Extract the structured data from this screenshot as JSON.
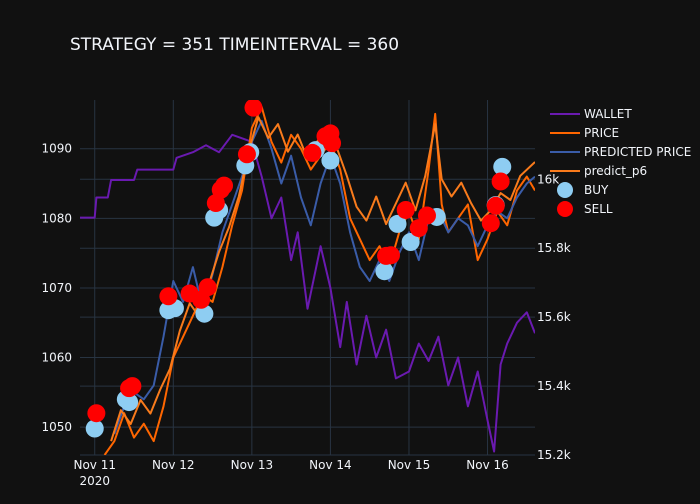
{
  "chart_data": {
    "type": "line",
    "title": "STRATEGY = 351 TIMEINTERVAL = 360",
    "background": "#111111",
    "grid": true,
    "legend_position": "right",
    "x_axis": {
      "type": "date",
      "range": [
        "2020-11-10T19:30",
        "2020-11-16T14:30"
      ],
      "ticks": [
        {
          "value": "2020-11-11T00:00",
          "label": "Nov 11",
          "sublabel": "2020"
        },
        {
          "value": "2020-11-12T00:00",
          "label": "Nov 12",
          "sublabel": ""
        },
        {
          "value": "2020-11-13T00:00",
          "label": "Nov 13",
          "sublabel": ""
        },
        {
          "value": "2020-11-14T00:00",
          "label": "Nov 14",
          "sublabel": ""
        },
        {
          "value": "2020-11-15T00:00",
          "label": "Nov 15",
          "sublabel": ""
        },
        {
          "value": "2020-11-16T00:00",
          "label": "Nov 16",
          "sublabel": ""
        }
      ]
    },
    "y_left": {
      "range": [
        1046,
        1097
      ],
      "ticks": [
        1050,
        1060,
        1070,
        1080,
        1090
      ],
      "tick_labels": [
        "1050",
        "1060",
        "1070",
        "1080",
        "1090"
      ]
    },
    "y_right": {
      "range": [
        15200,
        16230
      ],
      "ticks": [
        15200,
        15400,
        15600,
        15800,
        16000
      ],
      "tick_labels": [
        "15.2k",
        "15.4k",
        "15.6k",
        "15.8k",
        "16k"
      ]
    },
    "series": [
      {
        "name": "WALLET",
        "axis": "left",
        "color": "#6a1ab0",
        "points": [
          [
            "2020-11-10T19:30",
            1080.1
          ],
          [
            "2020-11-11T00:00",
            1080.1
          ],
          [
            "2020-11-11T00:30",
            1083.0
          ],
          [
            "2020-11-11T04:00",
            1083.0
          ],
          [
            "2020-11-11T05:00",
            1085.5
          ],
          [
            "2020-11-11T12:00",
            1085.5
          ],
          [
            "2020-11-11T13:00",
            1087.0
          ],
          [
            "2020-11-12T00:00",
            1087.0
          ],
          [
            "2020-11-12T01:00",
            1088.7
          ],
          [
            "2020-11-12T06:00",
            1089.5
          ],
          [
            "2020-11-12T10:00",
            1090.5
          ],
          [
            "2020-11-12T14:00",
            1089.5
          ],
          [
            "2020-11-12T18:00",
            1092.0
          ],
          [
            "2020-11-13T00:00",
            1091.0
          ],
          [
            "2020-11-13T03:00",
            1086.0
          ],
          [
            "2020-11-13T06:00",
            1080.0
          ],
          [
            "2020-11-13T09:00",
            1083.0
          ],
          [
            "2020-11-13T12:00",
            1074.0
          ],
          [
            "2020-11-13T14:00",
            1078.0
          ],
          [
            "2020-11-13T17:00",
            1067.0
          ],
          [
            "2020-11-13T21:00",
            1076.0
          ],
          [
            "2020-11-14T00:00",
            1070.0
          ],
          [
            "2020-11-14T03:00",
            1061.5
          ],
          [
            "2020-11-14T05:00",
            1068.0
          ],
          [
            "2020-11-14T08:00",
            1059.0
          ],
          [
            "2020-11-14T11:00",
            1066.0
          ],
          [
            "2020-11-14T14:00",
            1060.0
          ],
          [
            "2020-11-14T17:00",
            1064.0
          ],
          [
            "2020-11-14T20:00",
            1057.0
          ],
          [
            "2020-11-15T00:00",
            1058.0
          ],
          [
            "2020-11-15T03:00",
            1062.0
          ],
          [
            "2020-11-15T06:00",
            1059.5
          ],
          [
            "2020-11-15T09:00",
            1063.0
          ],
          [
            "2020-11-15T12:00",
            1056.0
          ],
          [
            "2020-11-15T15:00",
            1060.0
          ],
          [
            "2020-11-15T18:00",
            1053.0
          ],
          [
            "2020-11-15T21:00",
            1058.0
          ],
          [
            "2020-11-16T00:00",
            1051.0
          ],
          [
            "2020-11-16T02:00",
            1046.5
          ],
          [
            "2020-11-16T04:00",
            1059.0
          ],
          [
            "2020-11-16T06:00",
            1062.0
          ],
          [
            "2020-11-16T09:00",
            1065.0
          ],
          [
            "2020-11-16T12:00",
            1066.5
          ],
          [
            "2020-11-16T14:30",
            1063.5
          ]
        ]
      },
      {
        "name": "PRICE",
        "axis": "left",
        "color": "#ff6600",
        "points": [
          [
            "2020-11-11T03:00",
            1046.0
          ],
          [
            "2020-11-11T06:00",
            1048.0
          ],
          [
            "2020-11-11T09:00",
            1052.0
          ],
          [
            "2020-11-11T12:00",
            1048.5
          ],
          [
            "2020-11-11T15:00",
            1050.5
          ],
          [
            "2020-11-11T18:00",
            1048.0
          ],
          [
            "2020-11-11T21:00",
            1053.0
          ],
          [
            "2020-11-12T00:00",
            1060.0
          ],
          [
            "2020-11-12T03:00",
            1063.0
          ],
          [
            "2020-11-12T06:00",
            1066.0
          ],
          [
            "2020-11-12T09:00",
            1069.0
          ],
          [
            "2020-11-12T12:00",
            1068.0
          ],
          [
            "2020-11-12T15:00",
            1073.0
          ],
          [
            "2020-11-12T18:00",
            1079.0
          ],
          [
            "2020-11-12T21:00",
            1084.0
          ],
          [
            "2020-11-13T00:00",
            1093.0
          ],
          [
            "2020-11-13T03:00",
            1096.0
          ],
          [
            "2020-11-13T06:00",
            1091.0
          ],
          [
            "2020-11-13T09:00",
            1088.0
          ],
          [
            "2020-11-13T12:00",
            1092.0
          ],
          [
            "2020-11-13T15:00",
            1090.0
          ],
          [
            "2020-11-13T18:00",
            1087.0
          ],
          [
            "2020-11-13T21:00",
            1089.0
          ],
          [
            "2020-11-14T00:00",
            1091.0
          ],
          [
            "2020-11-14T03:00",
            1087.0
          ],
          [
            "2020-11-14T06:00",
            1080.0
          ],
          [
            "2020-11-14T09:00",
            1077.0
          ],
          [
            "2020-11-14T12:00",
            1074.0
          ],
          [
            "2020-11-14T15:00",
            1076.0
          ],
          [
            "2020-11-14T18:00",
            1073.0
          ],
          [
            "2020-11-14T21:00",
            1078.0
          ],
          [
            "2020-11-15T00:00",
            1081.0
          ],
          [
            "2020-11-15T03:00",
            1077.0
          ],
          [
            "2020-11-15T06:00",
            1087.0
          ],
          [
            "2020-11-15T08:00",
            1095.0
          ],
          [
            "2020-11-15T10:00",
            1082.0
          ],
          [
            "2020-11-15T12:00",
            1078.0
          ],
          [
            "2020-11-15T15:00",
            1080.0
          ],
          [
            "2020-11-15T18:00",
            1082.0
          ],
          [
            "2020-11-15T21:00",
            1074.0
          ],
          [
            "2020-11-16T00:00",
            1077.0
          ],
          [
            "2020-11-16T03:00",
            1081.0
          ],
          [
            "2020-11-16T06:00",
            1079.0
          ],
          [
            "2020-11-16T09:00",
            1084.0
          ],
          [
            "2020-11-16T12:00",
            1086.0
          ],
          [
            "2020-11-16T14:30",
            1084.0
          ]
        ]
      },
      {
        "name": "PREDICTED PRICE",
        "axis": "left",
        "color": "#3a5ca8",
        "points": [
          [
            "2020-11-11T06:00",
            1049.0
          ],
          [
            "2020-11-11T09:00",
            1053.0
          ],
          [
            "2020-11-11T12:00",
            1055.0
          ],
          [
            "2020-11-11T15:00",
            1054.0
          ],
          [
            "2020-11-11T18:00",
            1056.0
          ],
          [
            "2020-11-11T21:00",
            1063.0
          ],
          [
            "2020-11-12T00:00",
            1071.0
          ],
          [
            "2020-11-12T03:00",
            1068.0
          ],
          [
            "2020-11-12T06:00",
            1073.0
          ],
          [
            "2020-11-12T09:00",
            1067.0
          ],
          [
            "2020-11-12T12:00",
            1072.0
          ],
          [
            "2020-11-12T15:00",
            1078.0
          ],
          [
            "2020-11-12T18:00",
            1082.0
          ],
          [
            "2020-11-12T21:00",
            1086.0
          ],
          [
            "2020-11-13T00:00",
            1091.0
          ],
          [
            "2020-11-13T03:00",
            1094.0
          ],
          [
            "2020-11-13T06:00",
            1090.0
          ],
          [
            "2020-11-13T09:00",
            1085.0
          ],
          [
            "2020-11-13T12:00",
            1089.0
          ],
          [
            "2020-11-13T15:00",
            1083.0
          ],
          [
            "2020-11-13T18:00",
            1079.0
          ],
          [
            "2020-11-13T21:00",
            1085.0
          ],
          [
            "2020-11-14T00:00",
            1089.0
          ],
          [
            "2020-11-14T03:00",
            1085.0
          ],
          [
            "2020-11-14T06:00",
            1078.0
          ],
          [
            "2020-11-14T09:00",
            1073.0
          ],
          [
            "2020-11-14T12:00",
            1071.0
          ],
          [
            "2020-11-14T15:00",
            1074.0
          ],
          [
            "2020-11-14T18:00",
            1071.0
          ],
          [
            "2020-11-14T21:00",
            1075.0
          ],
          [
            "2020-11-15T00:00",
            1078.0
          ],
          [
            "2020-11-15T03:00",
            1074.0
          ],
          [
            "2020-11-15T06:00",
            1080.0
          ],
          [
            "2020-11-15T09:00",
            1081.0
          ],
          [
            "2020-11-15T12:00",
            1078.0
          ],
          [
            "2020-11-15T15:00",
            1080.0
          ],
          [
            "2020-11-15T18:00",
            1079.0
          ],
          [
            "2020-11-15T21:00",
            1076.0
          ],
          [
            "2020-11-16T00:00",
            1079.0
          ],
          [
            "2020-11-16T03:00",
            1081.0
          ],
          [
            "2020-11-16T06:00",
            1080.0
          ],
          [
            "2020-11-16T09:00",
            1083.0
          ],
          [
            "2020-11-16T12:00",
            1085.0
          ],
          [
            "2020-11-16T14:30",
            1086.0
          ]
        ]
      },
      {
        "name": "predict_p6",
        "axis": "right",
        "color": "#f97b1c",
        "points": [
          [
            "2020-11-11T05:00",
            15240
          ],
          [
            "2020-11-11T08:00",
            15330
          ],
          [
            "2020-11-11T11:00",
            15290
          ],
          [
            "2020-11-11T14:00",
            15360
          ],
          [
            "2020-11-11T17:00",
            15320
          ],
          [
            "2020-11-11T20:00",
            15390
          ],
          [
            "2020-11-11T23:00",
            15450
          ],
          [
            "2020-11-12T02:00",
            15560
          ],
          [
            "2020-11-12T05:00",
            15640
          ],
          [
            "2020-11-12T08:00",
            15600
          ],
          [
            "2020-11-12T11:00",
            15700
          ],
          [
            "2020-11-12T14:00",
            15790
          ],
          [
            "2020-11-12T17:00",
            15860
          ],
          [
            "2020-11-12T20:00",
            15950
          ],
          [
            "2020-11-12T23:00",
            16080
          ],
          [
            "2020-11-13T02:00",
            16180
          ],
          [
            "2020-11-13T05:00",
            16120
          ],
          [
            "2020-11-13T08:00",
            16160
          ],
          [
            "2020-11-13T11:00",
            16080
          ],
          [
            "2020-11-13T14:00",
            16130
          ],
          [
            "2020-11-13T17:00",
            16060
          ],
          [
            "2020-11-13T20:00",
            16110
          ],
          [
            "2020-11-13T23:00",
            16150
          ],
          [
            "2020-11-14T02:00",
            16090
          ],
          [
            "2020-11-14T05:00",
            16010
          ],
          [
            "2020-11-14T08:00",
            15920
          ],
          [
            "2020-11-14T11:00",
            15880
          ],
          [
            "2020-11-14T14:00",
            15950
          ],
          [
            "2020-11-14T17:00",
            15870
          ],
          [
            "2020-11-14T20:00",
            15930
          ],
          [
            "2020-11-14T23:00",
            15990
          ],
          [
            "2020-11-15T02:00",
            15910
          ],
          [
            "2020-11-15T05:00",
            16010
          ],
          [
            "2020-11-15T08:00",
            16160
          ],
          [
            "2020-11-15T10:00",
            16000
          ],
          [
            "2020-11-15T13:00",
            15950
          ],
          [
            "2020-11-15T16:00",
            15990
          ],
          [
            "2020-11-15T19:00",
            15930
          ],
          [
            "2020-11-15T22:00",
            15880
          ],
          [
            "2020-11-16T01:00",
            15910
          ],
          [
            "2020-11-16T04:00",
            15960
          ],
          [
            "2020-11-16T07:00",
            15940
          ],
          [
            "2020-11-16T10:00",
            16010
          ],
          [
            "2020-11-16T14:30",
            16050
          ]
        ]
      },
      {
        "name": "BUY",
        "axis": "left",
        "mode": "markers",
        "color": "#8ecdf2",
        "points": [
          [
            "2020-11-11T00:00",
            1049.8
          ],
          [
            "2020-11-11T09:30",
            1054.0
          ],
          [
            "2020-11-11T10:30",
            1053.6
          ],
          [
            "2020-11-11T22:30",
            1066.8
          ],
          [
            "2020-11-12T00:30",
            1067.1
          ],
          [
            "2020-11-12T09:30",
            1066.3
          ],
          [
            "2020-11-12T12:30",
            1080.1
          ],
          [
            "2020-11-12T14:00",
            1081.2
          ],
          [
            "2020-11-12T22:00",
            1087.6
          ],
          [
            "2020-11-12T23:30",
            1089.5
          ],
          [
            "2020-11-13T19:30",
            1089.8
          ],
          [
            "2020-11-14T00:00",
            1088.3
          ],
          [
            "2020-11-14T16:30",
            1072.4
          ],
          [
            "2020-11-14T20:30",
            1079.2
          ],
          [
            "2020-11-15T00:30",
            1076.6
          ],
          [
            "2020-11-15T08:30",
            1080.2
          ],
          [
            "2020-11-16T02:30",
            1081.9
          ],
          [
            "2020-11-16T04:30",
            1087.4
          ]
        ]
      },
      {
        "name": "SELL",
        "axis": "left",
        "mode": "markers",
        "color": "#ff0000",
        "points": [
          [
            "2020-11-11T00:30",
            1052.0
          ],
          [
            "2020-11-11T10:30",
            1055.6
          ],
          [
            "2020-11-11T11:30",
            1055.9
          ],
          [
            "2020-11-11T22:30",
            1068.8
          ],
          [
            "2020-11-12T05:00",
            1069.2
          ],
          [
            "2020-11-12T08:30",
            1068.3
          ],
          [
            "2020-11-12T10:30",
            1070.1
          ],
          [
            "2020-11-12T13:00",
            1082.2
          ],
          [
            "2020-11-12T14:30",
            1084.1
          ],
          [
            "2020-11-12T15:30",
            1084.7
          ],
          [
            "2020-11-12T22:30",
            1089.2
          ],
          [
            "2020-11-13T00:30",
            1095.9
          ],
          [
            "2020-11-13T18:30",
            1089.4
          ],
          [
            "2020-11-13T22:30",
            1091.8
          ],
          [
            "2020-11-14T00:00",
            1092.2
          ],
          [
            "2020-11-14T00:30",
            1090.8
          ],
          [
            "2020-11-14T17:00",
            1074.6
          ],
          [
            "2020-11-14T18:30",
            1074.7
          ],
          [
            "2020-11-14T23:00",
            1081.2
          ],
          [
            "2020-11-15T03:00",
            1078.6
          ],
          [
            "2020-11-15T05:30",
            1080.4
          ],
          [
            "2020-11-16T01:00",
            1079.3
          ],
          [
            "2020-11-16T02:30",
            1081.8
          ],
          [
            "2020-11-16T04:00",
            1085.3
          ]
        ]
      }
    ]
  }
}
